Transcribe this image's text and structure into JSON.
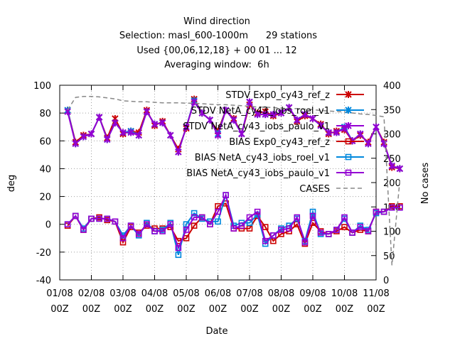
{
  "chart_data": {
    "type": "line",
    "title_lines": [
      "Wind direction",
      "Selection: masl_600-1000m      29 stations",
      "Used {00,06,12,18} + 00 01 ... 12",
      "Averaging window:  6h"
    ],
    "xlabel": "Date",
    "ylabel": "deg",
    "y2label": "No cases",
    "ylim": [
      -40,
      100
    ],
    "y2lim": [
      0,
      400
    ],
    "yticks": [
      "100",
      "80",
      "60",
      "40",
      "20",
      "0",
      "-20",
      "-40"
    ],
    "y2ticks": [
      "400",
      "350",
      "300",
      "250",
      "200",
      "150",
      "100",
      "50",
      "0"
    ],
    "xticks": [
      {
        "top": "01/08",
        "bottom": "00Z"
      },
      {
        "top": "02/08",
        "bottom": "00Z"
      },
      {
        "top": "03/08",
        "bottom": "00Z"
      },
      {
        "top": "04/08",
        "bottom": "00Z"
      },
      {
        "top": "05/08",
        "bottom": "00Z"
      },
      {
        "top": "06/08",
        "bottom": "00Z"
      },
      {
        "top": "07/08",
        "bottom": "00Z"
      },
      {
        "top": "08/08",
        "bottom": "00Z"
      },
      {
        "top": "09/08",
        "bottom": "00Z"
      },
      {
        "top": "10/08",
        "bottom": "00Z"
      },
      {
        "top": "11/08",
        "bottom": "00Z"
      }
    ],
    "x_hours": [
      6,
      12,
      18,
      24,
      30,
      36,
      42,
      48,
      54,
      60,
      66,
      72,
      78,
      84,
      90,
      96,
      102,
      108,
      114,
      120,
      126,
      132,
      138,
      144,
      150,
      156,
      162,
      168,
      174,
      180,
      186,
      192,
      198,
      204,
      210,
      216,
      222,
      228,
      234,
      240,
      246,
      252,
      258
    ],
    "grid": true,
    "legend_position": "top-right",
    "series": [
      {
        "name": "STDV Exp0_cy43_ref_z",
        "color": "#cc0000",
        "marker": "x",
        "axis": "left",
        "values": [
          82,
          59,
          64,
          65,
          77,
          62,
          76,
          65,
          67,
          66,
          82,
          71,
          74,
          64,
          54,
          69,
          90,
          80,
          75,
          67,
          82,
          76,
          65,
          86,
          80,
          81,
          78,
          80,
          84,
          74,
          78,
          76,
          72,
          65,
          67,
          68,
          60,
          64,
          59,
          70,
          59,
          41,
          40
        ]
      },
      {
        "name": "STDV NetA_cy43_iobs_roel_v1",
        "color": "#0088dd",
        "marker": "x",
        "axis": "left",
        "values": [
          82,
          58,
          63,
          65,
          77,
          61,
          73,
          66,
          67,
          64,
          81,
          72,
          73,
          64,
          52,
          70,
          89,
          80,
          75,
          65,
          82,
          75,
          65,
          88,
          79,
          79,
          79,
          80,
          84,
          75,
          79,
          76,
          71,
          66,
          66,
          70,
          60,
          65,
          58,
          70,
          58,
          42,
          40
        ]
      },
      {
        "name": "STDV NetA_cy43_iobs_paulo_v1",
        "color": "#9400d3",
        "marker": "x",
        "axis": "left",
        "values": [
          81,
          58,
          63,
          65,
          77,
          61,
          73,
          66,
          66,
          64,
          81,
          72,
          73,
          64,
          52,
          70,
          88,
          80,
          75,
          64,
          82,
          75,
          65,
          88,
          79,
          79,
          79,
          80,
          84,
          75,
          79,
          76,
          71,
          66,
          66,
          69,
          60,
          65,
          58,
          70,
          58,
          42,
          40
        ]
      },
      {
        "name": "BIAS Exp0_cy43_ref_z",
        "color": "#cc0000",
        "marker": "square",
        "axis": "left",
        "values": [
          -1,
          6,
          -4,
          4,
          5,
          3,
          2,
          -13,
          -2,
          -6,
          -1,
          -3,
          -3,
          -2,
          -12,
          -10,
          -1,
          5,
          0,
          13,
          15,
          -3,
          -3,
          -3,
          6,
          -2,
          -12,
          -7,
          -5,
          0,
          -14,
          1,
          -5,
          -7,
          -5,
          -2,
          -6,
          -4,
          -5,
          9,
          9,
          13,
          13
        ]
      },
      {
        "name": "BIAS NetA_cy43_iobs_roel_v1",
        "color": "#0088dd",
        "marker": "square",
        "axis": "left",
        "values": [
          0,
          6,
          -3,
          4,
          4,
          4,
          2,
          -8,
          -1,
          -8,
          1,
          -5,
          -4,
          1,
          -22,
          0,
          8,
          4,
          2,
          2,
          21,
          -1,
          1,
          1,
          7,
          -14,
          -8,
          -3,
          -1,
          4,
          -12,
          9,
          -7,
          -7,
          -4,
          4,
          -6,
          -1,
          -4,
          8,
          9,
          12,
          12
        ]
      },
      {
        "name": "BIAS NetA_cy43_iobs_paulo_v1",
        "color": "#9400d3",
        "marker": "square",
        "axis": "left",
        "values": [
          0,
          6,
          -4,
          4,
          4,
          4,
          2,
          -10,
          -1,
          -7,
          0,
          -5,
          -5,
          0,
          -17,
          -4,
          5,
          5,
          0,
          9,
          21,
          -3,
          -1,
          5,
          9,
          -12,
          -8,
          -4,
          -3,
          5,
          -13,
          6,
          -6,
          -7,
          -4,
          5,
          -6,
          -2,
          -5,
          9,
          9,
          12,
          12
        ]
      },
      {
        "name": "CASES",
        "color": "#888888",
        "marker": "none",
        "axis": "right",
        "dashed": true,
        "values": [
          349,
          375,
          377,
          377,
          376,
          374,
          372,
          368,
          367,
          366,
          366,
          365,
          364,
          364,
          364,
          363,
          363,
          362,
          361,
          360,
          360,
          359,
          358,
          357,
          355,
          355,
          354,
          353,
          352,
          352,
          351,
          350,
          348,
          347,
          346,
          345,
          343,
          341,
          340,
          338,
          335,
          30,
          205
        ]
      }
    ]
  }
}
